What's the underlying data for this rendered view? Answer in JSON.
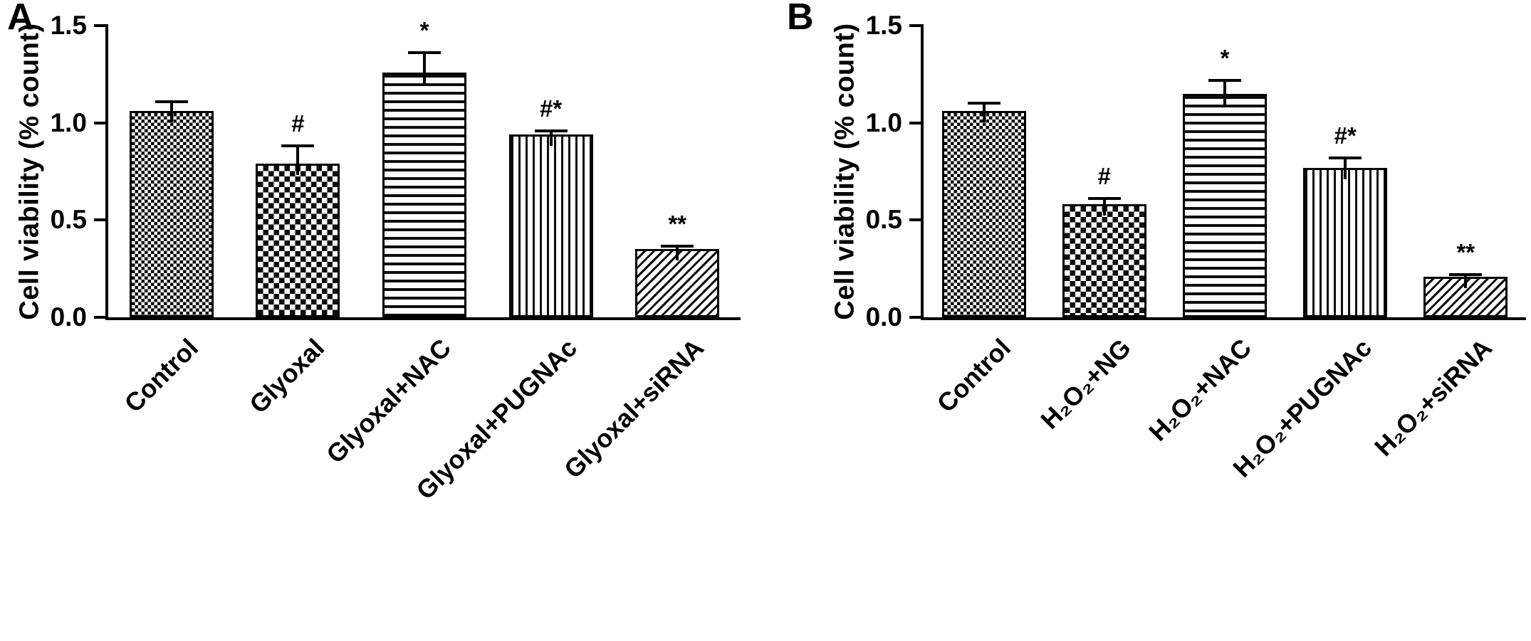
{
  "figure": {
    "background_color": "#ffffff",
    "ink_color": "#000000",
    "description": "Two-panel bar figure of cell viability with error bars and significance annotations"
  },
  "chart_data": [
    {
      "type": "bar",
      "panel": "A",
      "title": "",
      "xlabel": "",
      "ylabel": "Cell viability (% count)",
      "ylim": [
        0,
        1.5
      ],
      "yticks": [
        0,
        0.5,
        1.0,
        1.5
      ],
      "ytick_labels": [
        "0.0",
        "0.5",
        "1.0",
        "1.5"
      ],
      "grid": false,
      "legend": false,
      "categories": [
        "Control",
        "Glyoxal",
        "Glyoxal+NAC",
        "Glyoxal+PUGNAc",
        "Glyoxal+siRNA"
      ],
      "values": [
        1.06,
        0.79,
        1.26,
        0.94,
        0.35
      ],
      "errors": [
        0.05,
        0.09,
        0.1,
        0.02,
        0.015
      ],
      "annotations": [
        "",
        "#",
        "*",
        "#*",
        "**"
      ],
      "patterns": [
        "checker-fine",
        "checker-coarse",
        "horizontal-lines",
        "vertical-lines",
        "diagonal-lines"
      ]
    },
    {
      "type": "bar",
      "panel": "B",
      "title": "",
      "xlabel": "",
      "ylabel": "Cell viability (% count)",
      "ylim": [
        0,
        1.5
      ],
      "yticks": [
        0,
        0.5,
        1.0,
        1.5
      ],
      "ytick_labels": [
        "0.0",
        "0.5",
        "1.0",
        "1.5"
      ],
      "grid": false,
      "legend": false,
      "categories": [
        "Control",
        "H₂O₂+NG",
        "H₂O₂+NAC",
        "H₂O₂+PUGNAc",
        "H₂O₂+siRNA"
      ],
      "values": [
        1.06,
        0.58,
        1.15,
        0.77,
        0.21
      ],
      "errors": [
        0.04,
        0.03,
        0.07,
        0.05,
        0.01
      ],
      "annotations": [
        "",
        "#",
        "*",
        "#*",
        "**"
      ],
      "patterns": [
        "checker-fine",
        "checker-coarse",
        "horizontal-lines",
        "vertical-lines",
        "diagonal-lines"
      ]
    }
  ]
}
